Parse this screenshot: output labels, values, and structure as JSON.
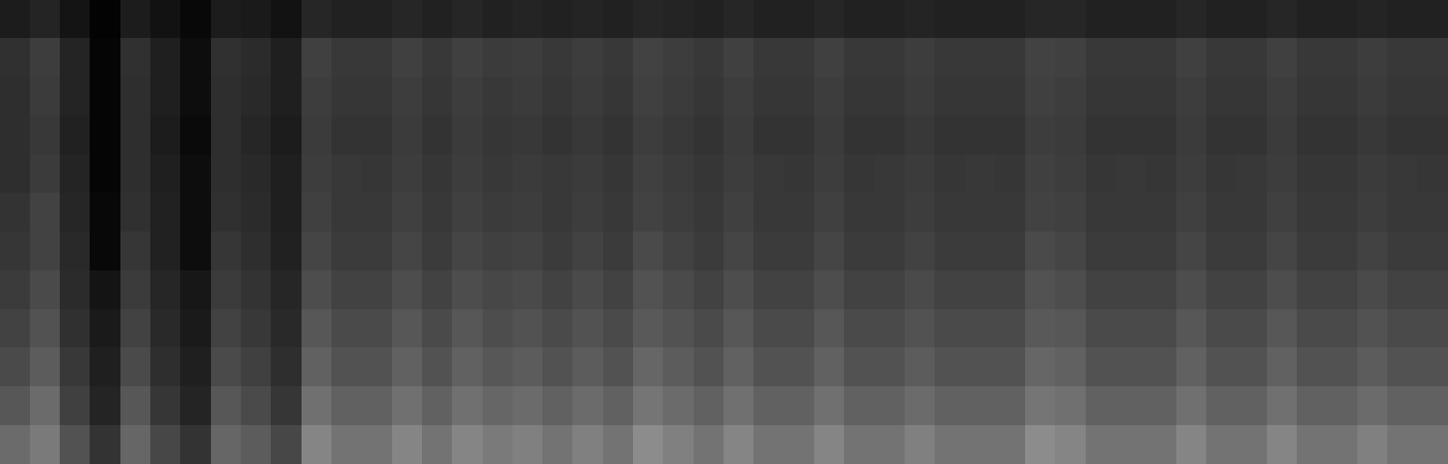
{
  "chart_data": {
    "type": "heatmap",
    "tick_labels": false,
    "color": "#ffffff",
    "zlim": [
      0,
      100
    ],
    "values": [
      [
        11,
        14,
        8,
        1,
        11,
        7,
        3,
        11,
        10,
        7,
        15,
        13,
        13,
        15,
        13,
        15,
        13,
        14,
        13,
        14,
        13,
        15,
        14,
        13,
        15,
        13,
        13,
        15,
        13,
        13,
        14,
        13,
        13,
        13,
        15,
        15,
        13,
        13,
        13,
        15,
        13,
        13,
        15,
        13,
        13,
        14,
        13,
        13
      ],
      [
        19,
        24,
        14,
        2,
        19,
        12,
        5,
        19,
        17,
        12,
        25,
        22,
        22,
        25,
        22,
        25,
        23,
        24,
        22,
        24,
        22,
        26,
        24,
        22,
        25,
        22,
        22,
        25,
        22,
        22,
        24,
        22,
        22,
        22,
        26,
        25,
        22,
        22,
        22,
        25,
        22,
        22,
        25,
        22,
        22,
        24,
        22,
        22
      ],
      [
        18,
        23,
        14,
        2,
        18,
        12,
        5,
        18,
        16,
        12,
        24,
        21,
        21,
        24,
        21,
        24,
        22,
        23,
        21,
        23,
        21,
        25,
        23,
        21,
        24,
        21,
        21,
        24,
        21,
        21,
        23,
        21,
        21,
        21,
        25,
        24,
        21,
        21,
        21,
        24,
        21,
        21,
        24,
        21,
        21,
        23,
        21,
        21
      ],
      [
        18,
        22,
        13,
        2,
        18,
        11,
        4,
        18,
        15,
        11,
        23,
        20,
        20,
        23,
        20,
        23,
        21,
        22,
        20,
        22,
        20,
        24,
        22,
        20,
        23,
        20,
        20,
        23,
        20,
        20,
        22,
        20,
        20,
        20,
        24,
        23,
        20,
        20,
        20,
        23,
        20,
        20,
        23,
        20,
        20,
        22,
        20,
        20
      ],
      [
        18,
        23,
        14,
        2,
        18,
        12,
        5,
        18,
        16,
        12,
        24,
        22,
        21,
        24,
        21,
        24,
        22,
        23,
        22,
        23,
        21,
        25,
        23,
        21,
        24,
        22,
        21,
        24,
        21,
        22,
        23,
        21,
        22,
        21,
        25,
        24,
        21,
        22,
        21,
        24,
        21,
        22,
        24,
        21,
        21,
        23,
        22,
        21
      ],
      [
        20,
        26,
        15,
        3,
        19,
        13,
        5,
        19,
        17,
        12,
        25,
        22,
        22,
        25,
        22,
        25,
        23,
        24,
        22,
        24,
        22,
        26,
        24,
        22,
        25,
        22,
        22,
        25,
        22,
        22,
        24,
        22,
        22,
        22,
        26,
        25,
        22,
        22,
        22,
        25,
        22,
        22,
        25,
        22,
        22,
        24,
        22,
        22
      ],
      [
        21,
        26,
        16,
        3,
        21,
        13,
        5,
        21,
        18,
        13,
        27,
        23,
        23,
        27,
        23,
        27,
        25,
        26,
        23,
        26,
        23,
        29,
        26,
        23,
        27,
        23,
        23,
        27,
        23,
        23,
        26,
        23,
        23,
        23,
        29,
        27,
        23,
        23,
        23,
        27,
        23,
        23,
        27,
        23,
        23,
        26,
        23,
        23
      ],
      [
        23,
        29,
        17,
        8,
        23,
        15,
        9,
        23,
        20,
        15,
        30,
        26,
        26,
        30,
        26,
        30,
        28,
        29,
        26,
        29,
        26,
        32,
        29,
        26,
        30,
        26,
        26,
        30,
        26,
        26,
        29,
        26,
        26,
        26,
        32,
        30,
        26,
        26,
        26,
        30,
        26,
        26,
        30,
        26,
        26,
        29,
        26,
        26
      ],
      [
        26,
        32,
        19,
        10,
        26,
        16,
        10,
        26,
        22,
        16,
        34,
        29,
        29,
        34,
        29,
        34,
        30,
        32,
        29,
        32,
        29,
        35,
        32,
        29,
        34,
        29,
        29,
        34,
        29,
        29,
        32,
        29,
        29,
        29,
        35,
        34,
        29,
        29,
        29,
        34,
        29,
        29,
        34,
        29,
        29,
        32,
        29,
        29
      ],
      [
        29,
        36,
        22,
        12,
        29,
        18,
        12,
        29,
        25,
        18,
        38,
        32,
        32,
        38,
        32,
        38,
        34,
        36,
        32,
        36,
        32,
        40,
        36,
        32,
        38,
        32,
        32,
        38,
        32,
        32,
        36,
        32,
        32,
        32,
        40,
        38,
        32,
        32,
        32,
        38,
        32,
        32,
        38,
        32,
        32,
        36,
        32,
        32
      ],
      [
        34,
        42,
        25,
        14,
        34,
        21,
        14,
        34,
        29,
        21,
        44,
        38,
        38,
        44,
        38,
        44,
        40,
        42,
        38,
        42,
        38,
        46,
        42,
        38,
        44,
        38,
        38,
        44,
        38,
        38,
        42,
        38,
        38,
        38,
        46,
        44,
        38,
        38,
        38,
        44,
        38,
        38,
        44,
        38,
        38,
        42,
        38,
        38
      ],
      [
        42,
        48,
        32,
        20,
        40,
        28,
        20,
        40,
        36,
        28,
        52,
        45,
        45,
        52,
        45,
        52,
        48,
        50,
        45,
        50,
        45,
        55,
        50,
        45,
        52,
        45,
        45,
        52,
        45,
        45,
        50,
        45,
        45,
        45,
        55,
        52,
        45,
        45,
        45,
        52,
        45,
        45,
        52,
        45,
        45,
        50,
        45,
        45
      ]
    ]
  }
}
